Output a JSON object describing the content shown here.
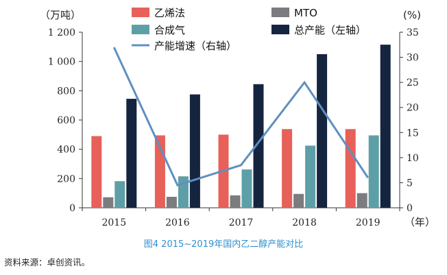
{
  "chart_data": {
    "type": "bar",
    "categories": [
      "2015",
      "2016",
      "2017",
      "2018",
      "2019"
    ],
    "series": [
      {
        "name": "乙烯法",
        "axis": "left",
        "color": "#e8605a",
        "values": [
          490,
          495,
          500,
          538,
          538
        ]
      },
      {
        "name": "MTO",
        "axis": "left",
        "color": "#7c7b80",
        "values": [
          72,
          75,
          85,
          95,
          100
        ]
      },
      {
        "name": "合成气",
        "axis": "left",
        "color": "#5e9fa7",
        "values": [
          182,
          215,
          262,
          425,
          495
        ]
      },
      {
        "name": "总产能（左轴）",
        "axis": "left",
        "color": "#152540",
        "values": [
          745,
          775,
          845,
          1050,
          1115
        ]
      },
      {
        "name": "产能增速（右轴）",
        "axis": "right",
        "type": "line",
        "color": "#5f8fc0",
        "values": [
          32,
          4.5,
          8.5,
          25,
          6
        ]
      }
    ],
    "ylim": [
      0,
      1200
    ],
    "yticks": [
      "0",
      "200",
      "400",
      "600",
      "800",
      "1 000",
      "1 200"
    ],
    "y2lim": [
      0,
      35
    ],
    "y2ticks": [
      "0",
      "5",
      "10",
      "15",
      "20",
      "25",
      "30",
      "35"
    ],
    "ylabel": "（万吨）",
    "y2label": "(%)",
    "xunit": "（年）",
    "legend_position": "top",
    "grid": false
  },
  "caption": "图4 2015~2019年国内乙二醇产能对比",
  "source": "资料来源：卓创资讯。"
}
